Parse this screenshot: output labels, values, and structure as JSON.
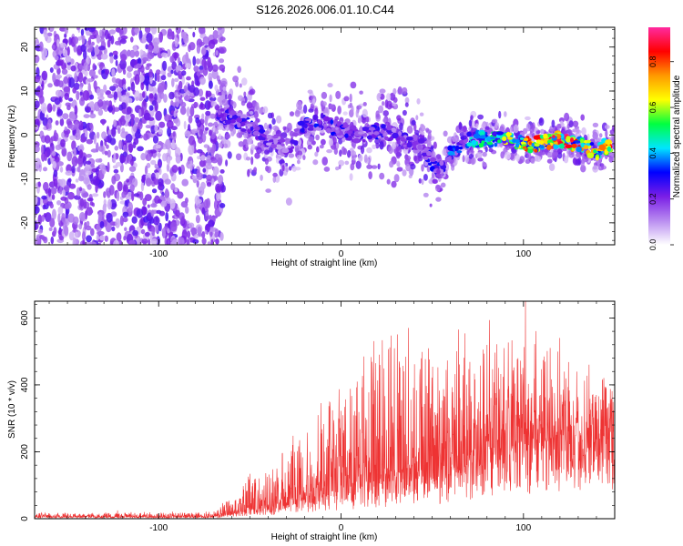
{
  "title": "S126.2026.006.01.10.C44",
  "chart_data": [
    {
      "type": "heatmap",
      "title": "S126.2026.006.01.10.C44",
      "xlabel": "Height of straight line (km)",
      "ylabel": "Frequency (Hz)",
      "xlim": [
        -168,
        150
      ],
      "ylim": [
        -25,
        24.5
      ],
      "xticks": [
        -100,
        0,
        100
      ],
      "yticks": [
        -20,
        -10,
        0,
        10,
        20
      ],
      "colorbar": {
        "label": "Normalized spectral amplitude",
        "range": [
          0.0,
          0.95
        ],
        "ticks": [
          "0.0",
          "0.2",
          "0.4",
          "0.6",
          "0.8"
        ],
        "colors": [
          "#ffffff",
          "#b98cf0",
          "#7a1ee6",
          "#0000ff",
          "#00e5ff",
          "#00ff40",
          "#ffff00",
          "#ff9900",
          "#ff0000",
          "#ff2aa0"
        ]
      },
      "ridge": {
        "description": "dominant frequency ridge",
        "x": [
          -68,
          -60,
          -50,
          -40,
          -30,
          -20,
          -10,
          0,
          10,
          20,
          30,
          40,
          45,
          50,
          55,
          60,
          70,
          80,
          90,
          100,
          110,
          120,
          130,
          140,
          148
        ],
        "y": [
          5,
          4,
          2,
          -1,
          -3,
          2,
          3,
          1,
          0,
          1,
          0,
          -2,
          -3,
          -7,
          -8,
          -4,
          -1,
          -1,
          -1,
          -2,
          -2,
          -1,
          -2,
          -4,
          -2
        ],
        "peak_amplitude": [
          0.25,
          0.3,
          0.3,
          0.25,
          0.2,
          0.3,
          0.3,
          0.3,
          0.25,
          0.3,
          0.25,
          0.25,
          0.25,
          0.3,
          0.3,
          0.35,
          0.45,
          0.5,
          0.6,
          0.75,
          0.85,
          0.9,
          0.8,
          0.7,
          0.85
        ]
      },
      "noise_region": {
        "x_from": -168,
        "x_to": -68,
        "amplitude": "low (0.0–0.15)"
      }
    },
    {
      "type": "line",
      "color": "#ee3333",
      "xlabel": "Height of straight line (km)",
      "ylabel": "SNR (10 * v/v)",
      "xlim": [
        -168,
        150
      ],
      "ylim": [
        0,
        650
      ],
      "xticks": [
        -100,
        0,
        100
      ],
      "yticks": [
        0,
        200,
        400,
        600
      ],
      "envelope": {
        "x": [
          -168,
          -80,
          -70,
          -60,
          -55,
          -50,
          -40,
          -30,
          -20,
          -10,
          0,
          10,
          20,
          30,
          40,
          50,
          60,
          70,
          80,
          90,
          100,
          110,
          120,
          130,
          140,
          150
        ],
        "baseline": [
          5,
          5,
          6,
          12,
          20,
          25,
          30,
          40,
          60,
          70,
          80,
          90,
          100,
          120,
          130,
          130,
          150,
          170,
          200,
          220,
          240,
          250,
          260,
          270,
          280,
          290
        ],
        "peak": [
          18,
          20,
          22,
          70,
          110,
          150,
          130,
          200,
          280,
          360,
          420,
          470,
          560,
          540,
          580,
          560,
          560,
          570,
          580,
          570,
          560,
          540,
          480,
          430,
          420,
          380
        ]
      },
      "max_value": 650
    }
  ]
}
